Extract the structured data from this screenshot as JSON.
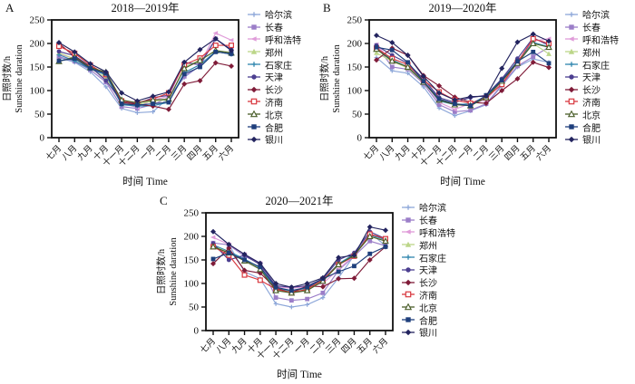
{
  "figure": {
    "xlabel": "时间 Time",
    "ylabel_cn": "日照时数/h",
    "ylabel_en": "Sunshine daration"
  },
  "chart_data": [
    {
      "type": "line",
      "panel_label": "A",
      "title": "2018—2019年",
      "xlabel": "时间 Time",
      "ylabel": [
        "日照时数/h",
        "Sunshine daration"
      ],
      "ylim": [
        0,
        250
      ],
      "yticks": [
        0,
        50,
        100,
        150,
        200,
        250
      ],
      "legend_position": "right",
      "categories": [
        "七月",
        "八月",
        "九月",
        "十月",
        "十一月",
        "十二月",
        "一月",
        "二月",
        "三月",
        "四月",
        "五月",
        "六月"
      ],
      "series": [
        {
          "name": "哈尔滨",
          "color": "#8DA7D9",
          "marker": "plus",
          "values": [
            170,
            160,
            140,
            108,
            62,
            53,
            55,
            85,
            128,
            153,
            183,
            177
          ]
        },
        {
          "name": "长春",
          "color": "#9B7EC8",
          "marker": "square",
          "values": [
            172,
            162,
            144,
            118,
            66,
            62,
            70,
            85,
            130,
            152,
            210,
            185
          ]
        },
        {
          "name": "呼和浩特",
          "color": "#E09CD9",
          "marker": "triangle-left",
          "values": [
            177,
            168,
            150,
            124,
            74,
            64,
            80,
            88,
            158,
            155,
            222,
            207
          ]
        },
        {
          "name": "郑州",
          "color": "#BCD689",
          "marker": "triangle",
          "values": [
            180,
            167,
            147,
            127,
            72,
            70,
            78,
            80,
            150,
            165,
            185,
            181
          ]
        },
        {
          "name": "石家庄",
          "color": "#2F86AE",
          "marker": "plus",
          "values": [
            176,
            163,
            146,
            133,
            70,
            67,
            68,
            75,
            138,
            155,
            183,
            177
          ]
        },
        {
          "name": "天津",
          "color": "#4C3F90",
          "marker": "circle",
          "values": [
            183,
            174,
            151,
            121,
            78,
            72,
            85,
            90,
            160,
            155,
            210,
            187
          ]
        },
        {
          "name": "长沙",
          "color": "#7F1B38",
          "marker": "diamond",
          "values": [
            200,
            172,
            150,
            137,
            75,
            71,
            67,
            60,
            114,
            121,
            159,
            152
          ]
        },
        {
          "name": "济南",
          "color": "#D8383F",
          "marker": "square-open",
          "values": [
            194,
            179,
            154,
            134,
            78,
            74,
            82,
            95,
            155,
            169,
            196,
            196
          ]
        },
        {
          "name": "北京",
          "color": "#4A5E2A",
          "marker": "triangle-open",
          "values": [
            162,
            171,
            149,
            139,
            80,
            74,
            80,
            82,
            147,
            164,
            185,
            180
          ]
        },
        {
          "name": "合肥",
          "color": "#1E3F7C",
          "marker": "square",
          "values": [
            163,
            168,
            147,
            136,
            72,
            69,
            72,
            75,
            135,
            150,
            182,
            178
          ]
        },
        {
          "name": "银川",
          "color": "#23245F",
          "marker": "diamond",
          "values": [
            202,
            182,
            157,
            140,
            95,
            78,
            88,
            97,
            160,
            187,
            210,
            185
          ]
        }
      ]
    },
    {
      "type": "line",
      "panel_label": "B",
      "title": "2019—2020年",
      "xlabel": "时间 Time",
      "ylabel": [
        "日照时数/h",
        "Sunshine daration"
      ],
      "ylim": [
        0,
        250
      ],
      "yticks": [
        0,
        50,
        100,
        150,
        200,
        250
      ],
      "legend_position": "right",
      "categories": [
        "七月",
        "八月",
        "九月",
        "十月",
        "十一月",
        "十二月",
        "一月",
        "二月",
        "三月",
        "四月",
        "五月",
        "六月"
      ],
      "series": [
        {
          "name": "哈尔滨",
          "color": "#8DA7D9",
          "marker": "plus",
          "values": [
            170,
            142,
            137,
            108,
            63,
            47,
            57,
            70,
            110,
            150,
            167,
            160
          ]
        },
        {
          "name": "长春",
          "color": "#9B7EC8",
          "marker": "square",
          "values": [
            196,
            150,
            145,
            115,
            70,
            55,
            58,
            72,
            112,
            152,
            172,
            192
          ]
        },
        {
          "name": "呼和浩特",
          "color": "#E09CD9",
          "marker": "triangle-left",
          "values": [
            198,
            160,
            152,
            120,
            75,
            60,
            73,
            80,
            118,
            160,
            205,
            210
          ]
        },
        {
          "name": "郑州",
          "color": "#BCD689",
          "marker": "triangle",
          "values": [
            180,
            162,
            148,
            118,
            80,
            72,
            70,
            85,
            120,
            158,
            200,
            178
          ]
        },
        {
          "name": "石家庄",
          "color": "#2F86AE",
          "marker": "plus",
          "values": [
            190,
            165,
            150,
            120,
            78,
            70,
            72,
            88,
            122,
            162,
            202,
            193
          ]
        },
        {
          "name": "天津",
          "color": "#4C3F90",
          "marker": "circle",
          "values": [
            196,
            175,
            158,
            125,
            85,
            75,
            85,
            90,
            125,
            168,
            212,
            196
          ]
        },
        {
          "name": "长沙",
          "color": "#7F1B38",
          "marker": "diamond",
          "values": [
            165,
            190,
            175,
            132,
            110,
            86,
            75,
            73,
            100,
            125,
            160,
            149
          ]
        },
        {
          "name": "济南",
          "color": "#D8383F",
          "marker": "square-open",
          "values": [
            190,
            168,
            155,
            122,
            97,
            80,
            73,
            85,
            113,
            160,
            210,
            200
          ]
        },
        {
          "name": "北京",
          "color": "#4A5E2A",
          "marker": "triangle-open",
          "values": [
            188,
            163,
            150,
            118,
            80,
            70,
            68,
            85,
            120,
            158,
            200,
            192
          ]
        },
        {
          "name": "合肥",
          "color": "#1E3F7C",
          "marker": "square",
          "values": [
            192,
            186,
            160,
            120,
            82,
            72,
            68,
            90,
            122,
            162,
            182,
            158
          ]
        },
        {
          "name": "银川",
          "color": "#23245F",
          "marker": "diamond",
          "values": [
            217,
            202,
            175,
            130,
            95,
            80,
            87,
            88,
            147,
            203,
            220,
            205
          ]
        }
      ]
    },
    {
      "type": "line",
      "panel_label": "C",
      "title": "2020—2021年",
      "xlabel": "时间 Time",
      "ylabel": [
        "日照时数/h",
        "Sunshine daration"
      ],
      "ylim": [
        0,
        250
      ],
      "yticks": [
        0,
        50,
        100,
        150,
        200,
        250
      ],
      "legend_position": "right",
      "categories": [
        "七月",
        "八月",
        "九月",
        "十月",
        "十一月",
        "十二月",
        "一月",
        "二月",
        "三月",
        "四月",
        "五月",
        "六月"
      ],
      "series": [
        {
          "name": "哈尔滨",
          "color": "#8DA7D9",
          "marker": "plus",
          "values": [
            210,
            183,
            125,
            110,
            57,
            50,
            55,
            70,
            112,
            160,
            208,
            180
          ]
        },
        {
          "name": "长春",
          "color": "#9B7EC8",
          "marker": "square",
          "values": [
            186,
            182,
            158,
            142,
            70,
            64,
            67,
            80,
            128,
            158,
            190,
            180
          ]
        },
        {
          "name": "呼和浩特",
          "color": "#E09CD9",
          "marker": "triangle-left",
          "values": [
            198,
            183,
            162,
            143,
            93,
            90,
            93,
            100,
            130,
            160,
            205,
            192
          ]
        },
        {
          "name": "郑州",
          "color": "#BCD689",
          "marker": "triangle",
          "values": [
            180,
            165,
            150,
            130,
            88,
            82,
            87,
            105,
            140,
            160,
            200,
            190
          ]
        },
        {
          "name": "石家庄",
          "color": "#2F86AE",
          "marker": "plus",
          "values": [
            182,
            168,
            152,
            133,
            90,
            84,
            90,
            108,
            142,
            162,
            203,
            193
          ]
        },
        {
          "name": "天津",
          "color": "#4C3F90",
          "marker": "circle",
          "values": [
            185,
            150,
            160,
            140,
            95,
            92,
            95,
            110,
            150,
            165,
            210,
            195
          ]
        },
        {
          "name": "长沙",
          "color": "#7F1B38",
          "marker": "diamond",
          "values": [
            142,
            175,
            128,
            122,
            90,
            80,
            95,
            93,
            110,
            111,
            150,
            178
          ]
        },
        {
          "name": "济南",
          "color": "#D8383F",
          "marker": "square-open",
          "values": [
            178,
            160,
            118,
            107,
            88,
            80,
            88,
            108,
            140,
            158,
            205,
            195
          ]
        },
        {
          "name": "北京",
          "color": "#4A5E2A",
          "marker": "triangle-open",
          "values": [
            178,
            165,
            148,
            130,
            85,
            80,
            85,
            105,
            140,
            160,
            200,
            190
          ]
        },
        {
          "name": "合肥",
          "color": "#1E3F7C",
          "marker": "square",
          "values": [
            152,
            165,
            150,
            135,
            92,
            85,
            92,
            110,
            125,
            137,
            163,
            178
          ]
        },
        {
          "name": "银川",
          "color": "#23245F",
          "marker": "diamond",
          "values": [
            210,
            183,
            162,
            143,
            100,
            92,
            100,
            112,
            155,
            160,
            220,
            213
          ]
        }
      ]
    }
  ]
}
